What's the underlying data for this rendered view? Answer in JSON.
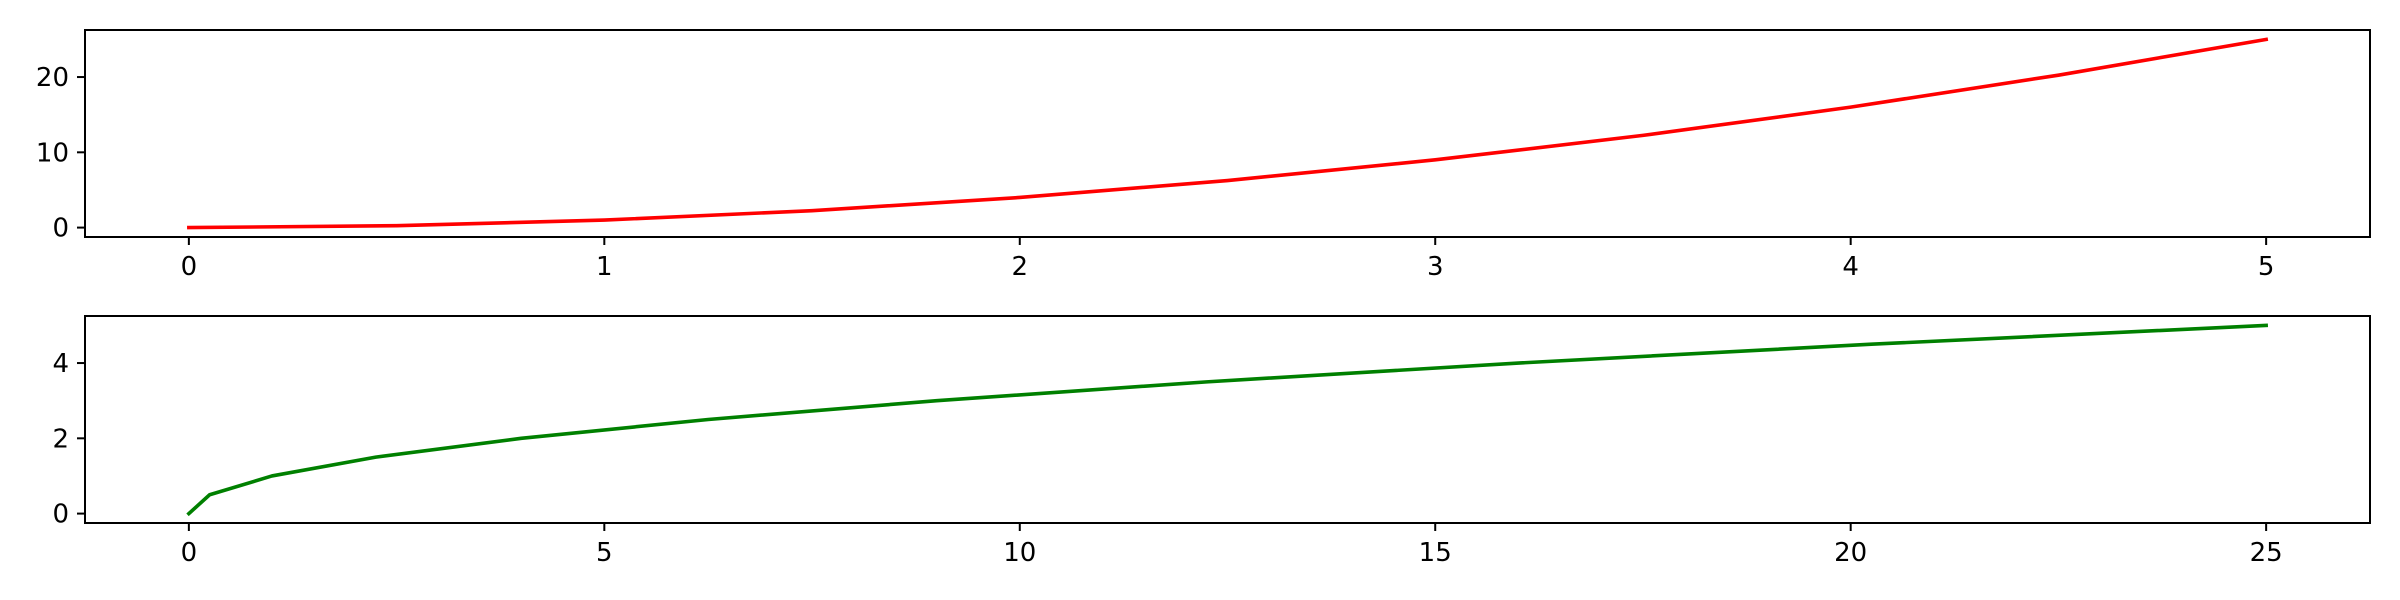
{
  "chart_data": [
    {
      "type": "line",
      "title": "",
      "xlabel": "",
      "ylabel": "",
      "xlim": [
        -0.25,
        5.25
      ],
      "ylim": [
        -1.25,
        26.25
      ],
      "xticks": [
        0,
        1,
        2,
        3,
        4,
        5
      ],
      "xtick_labels": [
        "0",
        "1",
        "2",
        "3",
        "4",
        "5"
      ],
      "yticks": [
        0,
        10,
        20
      ],
      "ytick_labels": [
        "0",
        "10",
        "20"
      ],
      "grid": false,
      "legend": "none",
      "series": [
        {
          "color": "#ff0000",
          "x": [
            0,
            0.5,
            1,
            1.5,
            2,
            2.5,
            3,
            3.5,
            4,
            4.5,
            5
          ],
          "y": [
            0,
            0.25,
            1,
            2.25,
            4,
            6.25,
            9,
            12.25,
            16,
            20.25,
            25
          ]
        }
      ]
    },
    {
      "type": "line",
      "title": "",
      "xlabel": "",
      "ylabel": "",
      "xlim": [
        -1.25,
        26.25
      ],
      "ylim": [
        -0.25,
        5.25
      ],
      "xticks": [
        0,
        5,
        10,
        15,
        20,
        25
      ],
      "xtick_labels": [
        "0",
        "5",
        "10",
        "15",
        "20",
        "25"
      ],
      "yticks": [
        0,
        2,
        4
      ],
      "ytick_labels": [
        "0",
        "2",
        "4"
      ],
      "grid": false,
      "legend": "none",
      "series": [
        {
          "color": "#008000",
          "x": [
            0,
            0.25,
            1,
            2.25,
            4,
            6.25,
            9,
            12.25,
            16,
            20.25,
            25
          ],
          "y": [
            0,
            0.5,
            1,
            1.5,
            2,
            2.5,
            3,
            3.5,
            4,
            4.5,
            5
          ]
        }
      ]
    }
  ]
}
